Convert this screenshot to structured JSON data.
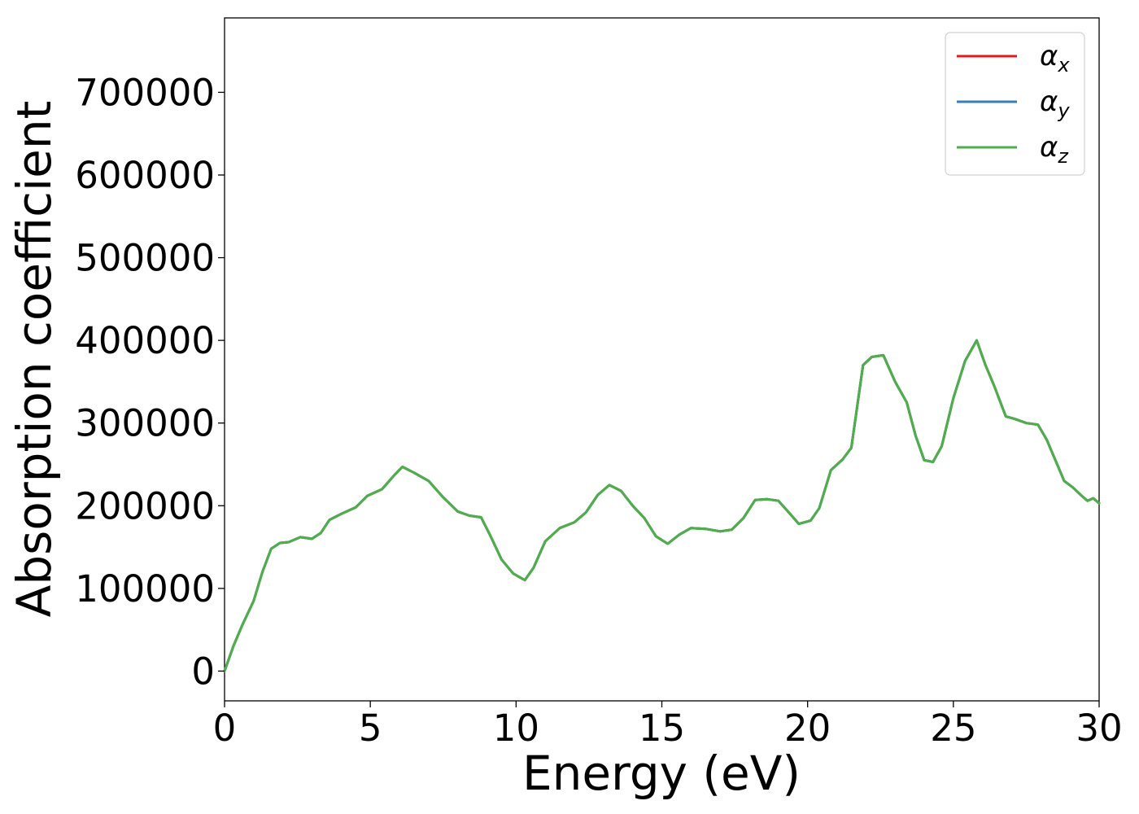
{
  "chart_data": {
    "type": "line",
    "xlabel": "Energy (eV)",
    "ylabel": "Absorption coefficient",
    "xlim": [
      0,
      30
    ],
    "ylim": [
      -36000,
      790000
    ],
    "xticks": [
      0,
      5,
      10,
      15,
      20,
      25,
      30
    ],
    "yticks": [
      0,
      100000,
      200000,
      300000,
      400000,
      500000,
      600000,
      700000
    ],
    "grid": false,
    "legend_position": "top-right",
    "series": [
      {
        "name": "α",
        "sub": "x",
        "color": "#e41a1c"
      },
      {
        "name": "α",
        "sub": "y",
        "color": "#377eb8"
      },
      {
        "name": "α",
        "sub": "z",
        "color": "#4daf4a"
      }
    ],
    "x": [
      0,
      0.3,
      0.6,
      1.0,
      1.3,
      1.6,
      1.9,
      2.2,
      2.6,
      3.0,
      3.3,
      3.6,
      4.0,
      4.5,
      4.9,
      5.4,
      5.8,
      6.1,
      6.5,
      7.0,
      7.5,
      8.0,
      8.4,
      8.8,
      9.1,
      9.5,
      9.9,
      10.3,
      10.6,
      11.0,
      11.5,
      12.0,
      12.4,
      12.8,
      13.2,
      13.6,
      14.0,
      14.4,
      14.8,
      15.2,
      15.6,
      16.0,
      16.5,
      17.0,
      17.4,
      17.8,
      18.2,
      18.6,
      19.0,
      19.4,
      19.7,
      20.1,
      20.4,
      20.8,
      21.2,
      21.5,
      21.9,
      22.2,
      22.6,
      23.0,
      23.4,
      23.7,
      24.0,
      24.3,
      24.6,
      25.0,
      25.4,
      25.8,
      26.1,
      26.4,
      26.8,
      27.1,
      27.5,
      27.9,
      28.2,
      28.5,
      28.8,
      29.1,
      29.4,
      29.6,
      29.8,
      30.0
    ],
    "values": [
      0,
      30000,
      55000,
      85000,
      120000,
      148000,
      155000,
      156000,
      162000,
      160000,
      167000,
      183000,
      190000,
      198000,
      212000,
      220000,
      236000,
      247000,
      240000,
      230000,
      210000,
      193000,
      188000,
      186000,
      165000,
      135000,
      118000,
      110000,
      125000,
      157000,
      173000,
      180000,
      192000,
      213000,
      225000,
      218000,
      200000,
      185000,
      163000,
      154000,
      165000,
      173000,
      172000,
      169000,
      171000,
      185000,
      207000,
      208000,
      206000,
      190000,
      178000,
      182000,
      197000,
      243000,
      256000,
      270000,
      370000,
      380000,
      382000,
      350000,
      325000,
      285000,
      255000,
      253000,
      272000,
      330000,
      375000,
      400000,
      370000,
      345000,
      308000,
      305000,
      300000,
      298000,
      280000,
      255000,
      230000,
      222000,
      212000,
      206000,
      209000,
      203000
    ]
  }
}
